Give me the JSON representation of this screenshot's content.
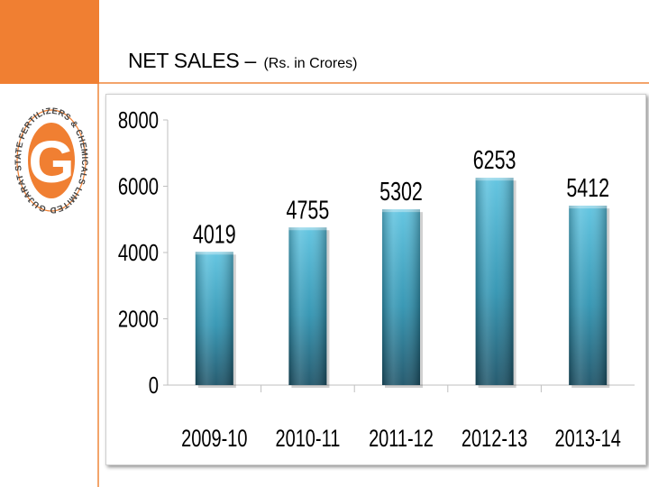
{
  "header": {
    "title": "NET SALES –",
    "subtitle": "(Rs. in Crores)"
  },
  "logo": {
    "letter": "G",
    "ring_text": "GUJARAT STATE FERTILIZERS & CHEMICALS LIMITED"
  },
  "colors": {
    "accent": "#f07f32",
    "bar_top": "#5dc3e0",
    "bar_mid": "#2f93b1",
    "bar_bottom": "#1c5368"
  },
  "chart_data": {
    "type": "bar",
    "title": "NET SALES – (Rs. in Crores)",
    "categories": [
      "2009-10",
      "2010-11",
      "2011-12",
      "2012-13",
      "2013-14"
    ],
    "values": [
      4019,
      4755,
      5302,
      6253,
      5412
    ],
    "y_ticks": [
      "0",
      "2000",
      "4000",
      "6000",
      "8000"
    ],
    "ylim": [
      0,
      8000
    ],
    "xlabel": "",
    "ylabel": "",
    "grid": false,
    "legend": "none"
  }
}
